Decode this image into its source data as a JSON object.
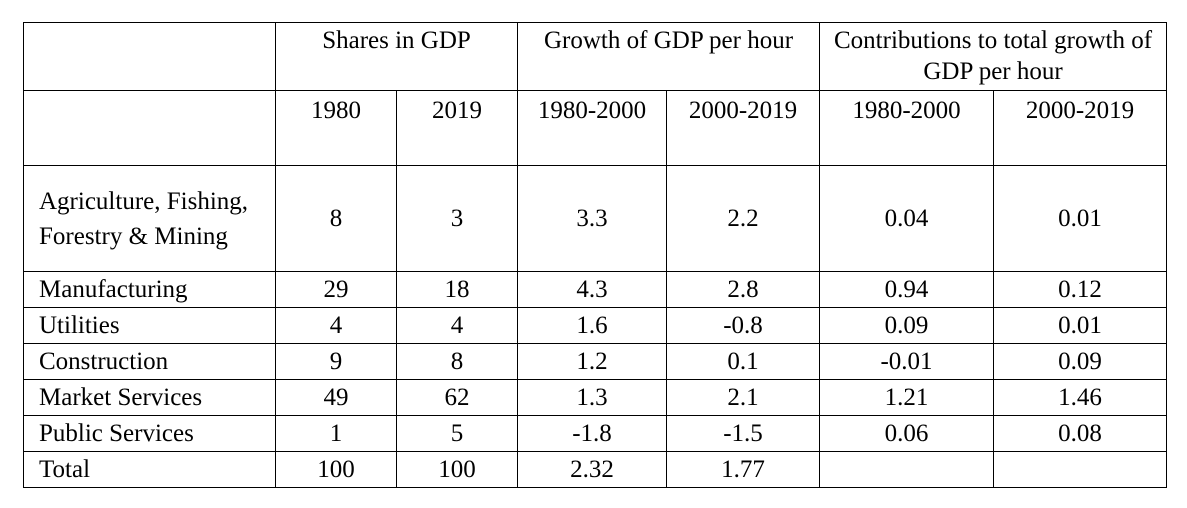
{
  "table": {
    "group_headers": [
      "Shares in GDP",
      "Growth of GDP per hour",
      "Contributions to total growth of GDP per hour"
    ],
    "sub_headers": [
      "1980",
      "2019",
      "1980-2000",
      "2000-2019",
      "1980-2000",
      "2000-2019"
    ],
    "rows": [
      {
        "label": "Agriculture, Fishing, Forestry & Mining",
        "values": [
          "8",
          "3",
          "3.3",
          "2.2",
          "0.04",
          "0.01"
        ]
      },
      {
        "label": "Manufacturing",
        "values": [
          "29",
          "18",
          "4.3",
          "2.8",
          "0.94",
          "0.12"
        ]
      },
      {
        "label": "Utilities",
        "values": [
          "4",
          "4",
          "1.6",
          "-0.8",
          "0.09",
          "0.01"
        ]
      },
      {
        "label": "Construction",
        "values": [
          "9",
          "8",
          "1.2",
          "0.1",
          "-0.01",
          "0.09"
        ]
      },
      {
        "label": "Market Services",
        "values": [
          "49",
          "62",
          "1.3",
          "2.1",
          "1.21",
          "1.46"
        ]
      },
      {
        "label": "Public Services",
        "values": [
          "1",
          "5",
          "-1.8",
          "-1.5",
          "0.06",
          "0.08"
        ]
      },
      {
        "label": "Total",
        "values": [
          "100",
          "100",
          "2.32",
          "1.77",
          "",
          ""
        ]
      }
    ]
  }
}
